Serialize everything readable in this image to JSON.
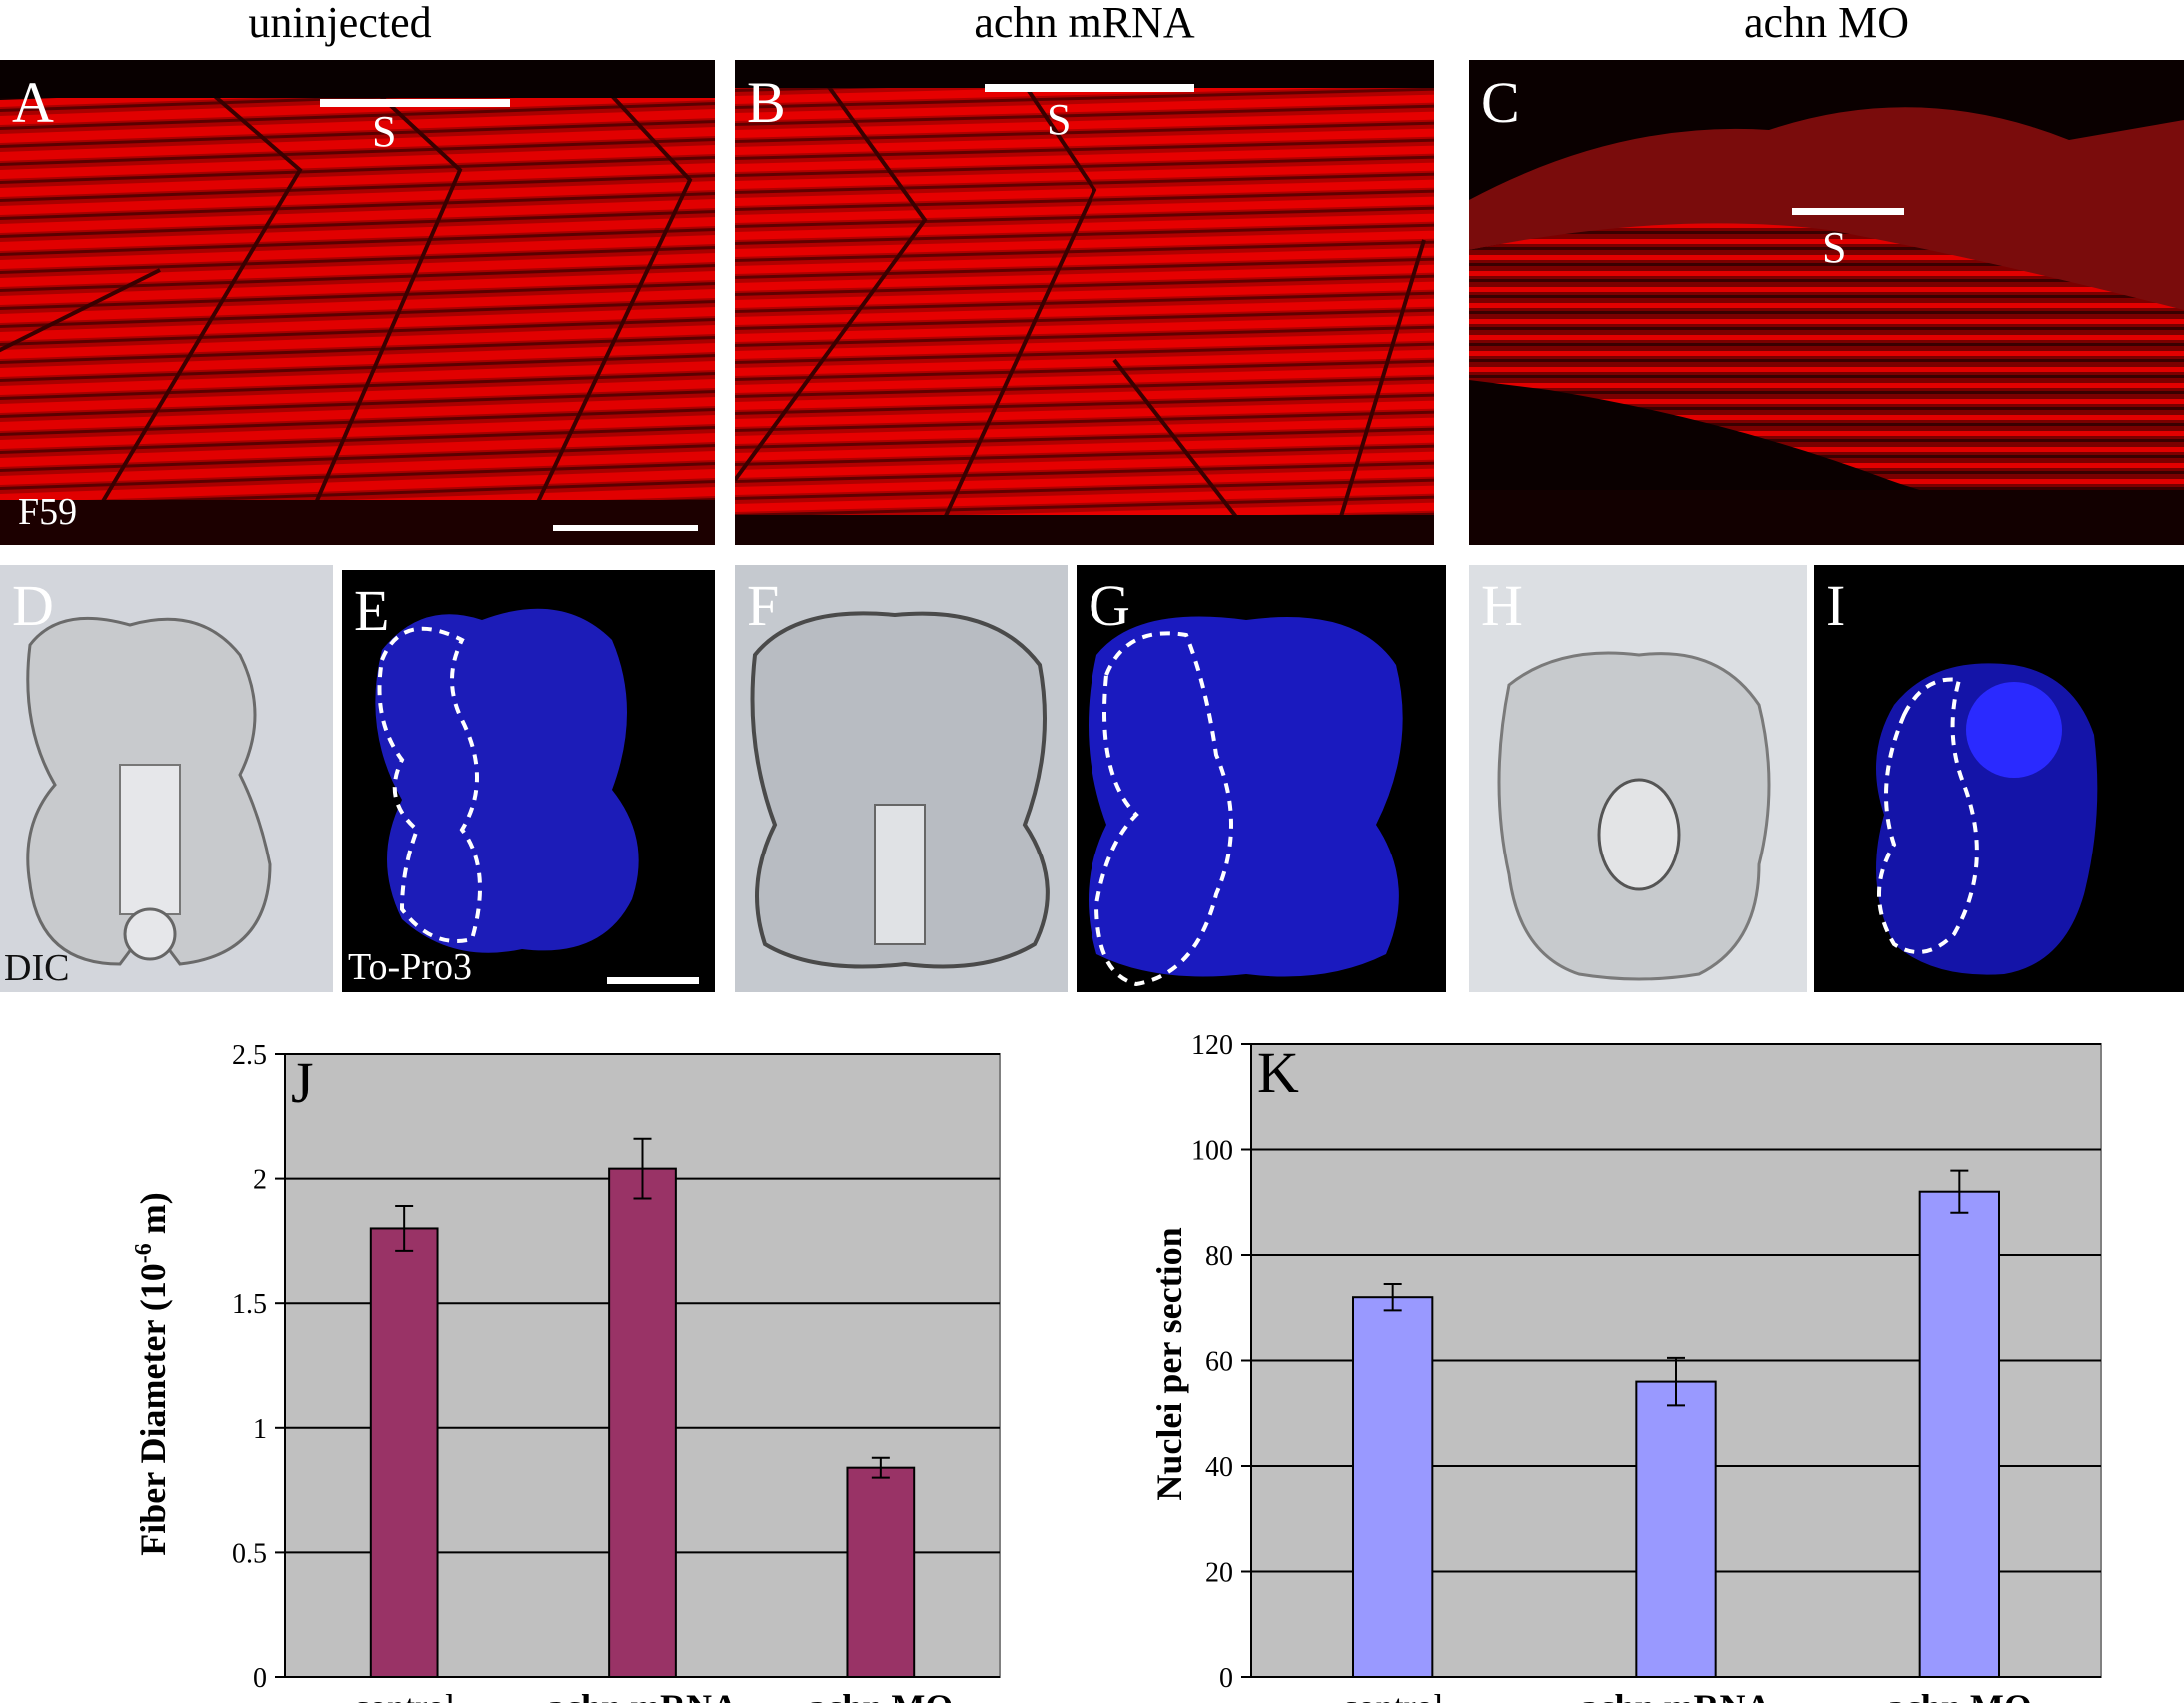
{
  "columns": [
    "uninjected",
    "achn mRNA",
    "achn MO"
  ],
  "panels": {
    "A": "A",
    "B": "B",
    "C": "C",
    "D": "D",
    "E": "E",
    "F": "F",
    "G": "G",
    "H": "H",
    "I": "I"
  },
  "annotations": {
    "somite": "S",
    "stain_top": "F59",
    "stain_dic": "DIC",
    "stain_nuclei": "To-Pro3"
  },
  "colors": {
    "fiber_red": "#e00000",
    "nuclei_blue": "#1a1ae0",
    "bar_J": "#993366",
    "bar_K": "#9999ff",
    "plot_bg": "#c0c0c0"
  },
  "chart_data": [
    {
      "type": "bar",
      "panel": "J",
      "categories": [
        "control",
        "achn mRNA",
        "achn MO"
      ],
      "values": [
        1.8,
        2.04,
        0.84
      ],
      "errors": [
        0.09,
        0.12,
        0.04
      ],
      "ylabel_main": "Fiber Diameter (10",
      "ylabel_sup": "-6",
      "ylabel_end": " m)",
      "ylim": [
        0,
        2.5
      ],
      "yticks": [
        "0",
        "0.5",
        "1",
        "1.5",
        "2",
        "2.5"
      ],
      "grid": true
    },
    {
      "type": "bar",
      "panel": "K",
      "categories": [
        "control",
        "achn mRNA",
        "achn MO"
      ],
      "values": [
        72,
        56,
        92
      ],
      "errors": [
        2.5,
        4.5,
        4
      ],
      "ylabel": "Nuclei per section",
      "ylim": [
        0,
        120
      ],
      "yticks": [
        "0",
        "20",
        "40",
        "60",
        "80",
        "100",
        "120"
      ],
      "grid": true
    }
  ]
}
